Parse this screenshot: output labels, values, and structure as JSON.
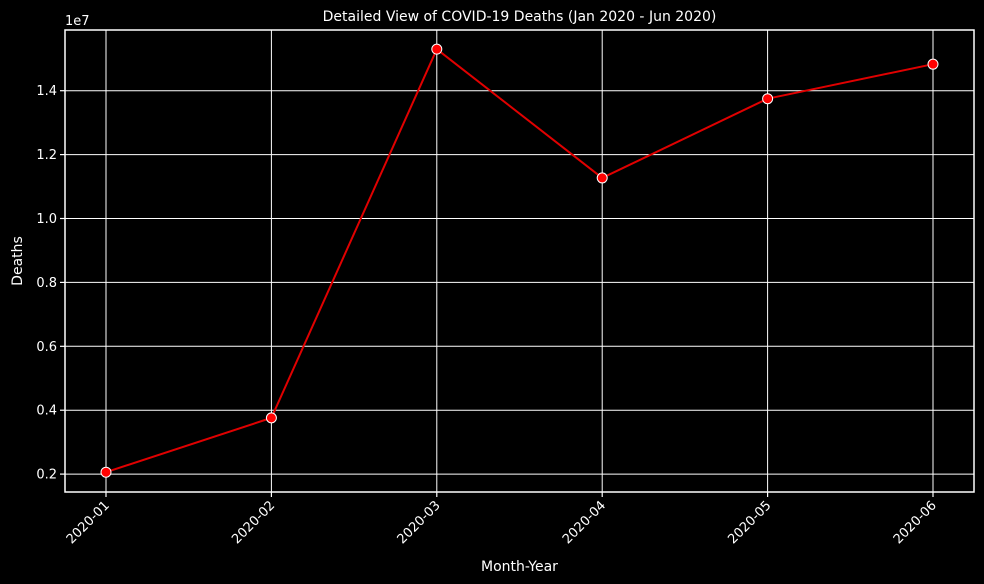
{
  "chart_data": {
    "type": "line",
    "title": "Detailed View of COVID-19 Deaths (Jan 2020 - Jun 2020)",
    "xlabel": "Month-Year",
    "ylabel": "Deaths",
    "y_scale_label": "1e7",
    "categories": [
      "2020-01",
      "2020-02",
      "2020-03",
      "2020-04",
      "2020-05",
      "2020-06"
    ],
    "values": [
      2060000,
      3760000,
      15300000,
      11270000,
      13750000,
      14830000
    ],
    "y_ticks": [
      0.2,
      0.4,
      0.6,
      0.8,
      1.0,
      1.2,
      1.4
    ],
    "y_tick_labels": [
      "0.2",
      "0.4",
      "0.6",
      "0.8",
      "1.0",
      "1.2",
      "1.4"
    ],
    "ylim": [
      1440000,
      15900000
    ],
    "grid": true,
    "legend": "none",
    "colors": {
      "background": "#000000",
      "line": "#e00000",
      "marker_fill": "#ff0000",
      "marker_edge": "#ffffff",
      "grid": "#ffffff",
      "text": "#ffffff"
    }
  }
}
